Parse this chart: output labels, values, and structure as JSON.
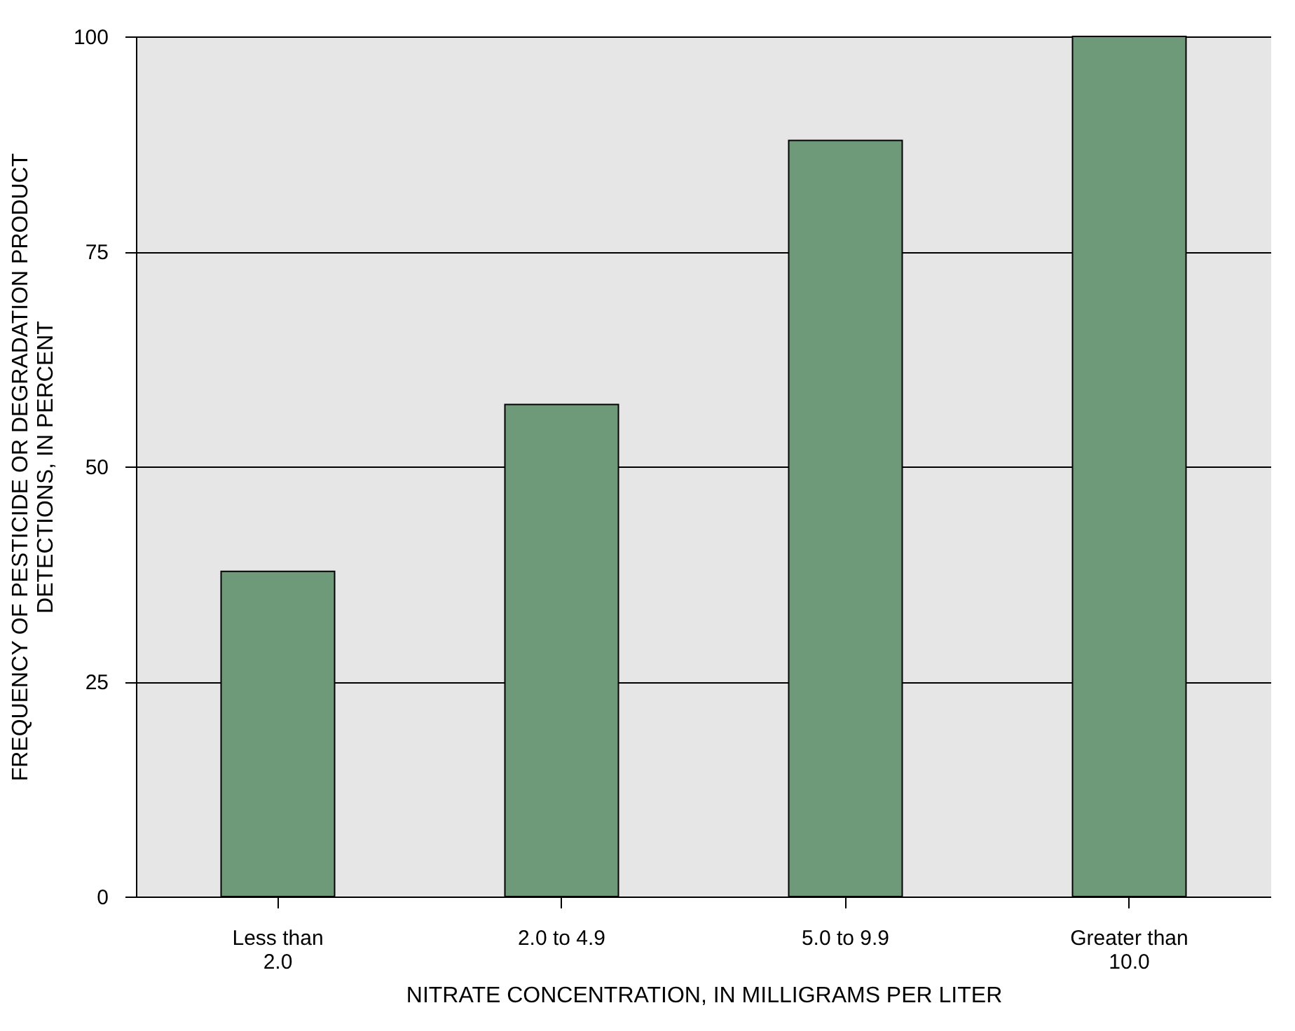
{
  "chart_data": {
    "type": "bar",
    "categories": [
      "Less than\n2.0",
      "2.0 to 4.9",
      "5.0 to 9.9",
      "Greater than\n10.0"
    ],
    "values": [
      37.8,
      57.2,
      87.9,
      100
    ],
    "color": "#6f9a7a",
    "xlabel": "NITRATE CONCENTRATION, IN MILLIGRAMS PER LITER",
    "ylabel": "FREQUENCY OF PESTICIDE OR DEGRADATION PRODUCT\nDETECTIONS, IN PERCENT",
    "ylim": [
      0,
      100
    ],
    "yticks": [
      0,
      25,
      50,
      75,
      100
    ],
    "grid": "y"
  }
}
